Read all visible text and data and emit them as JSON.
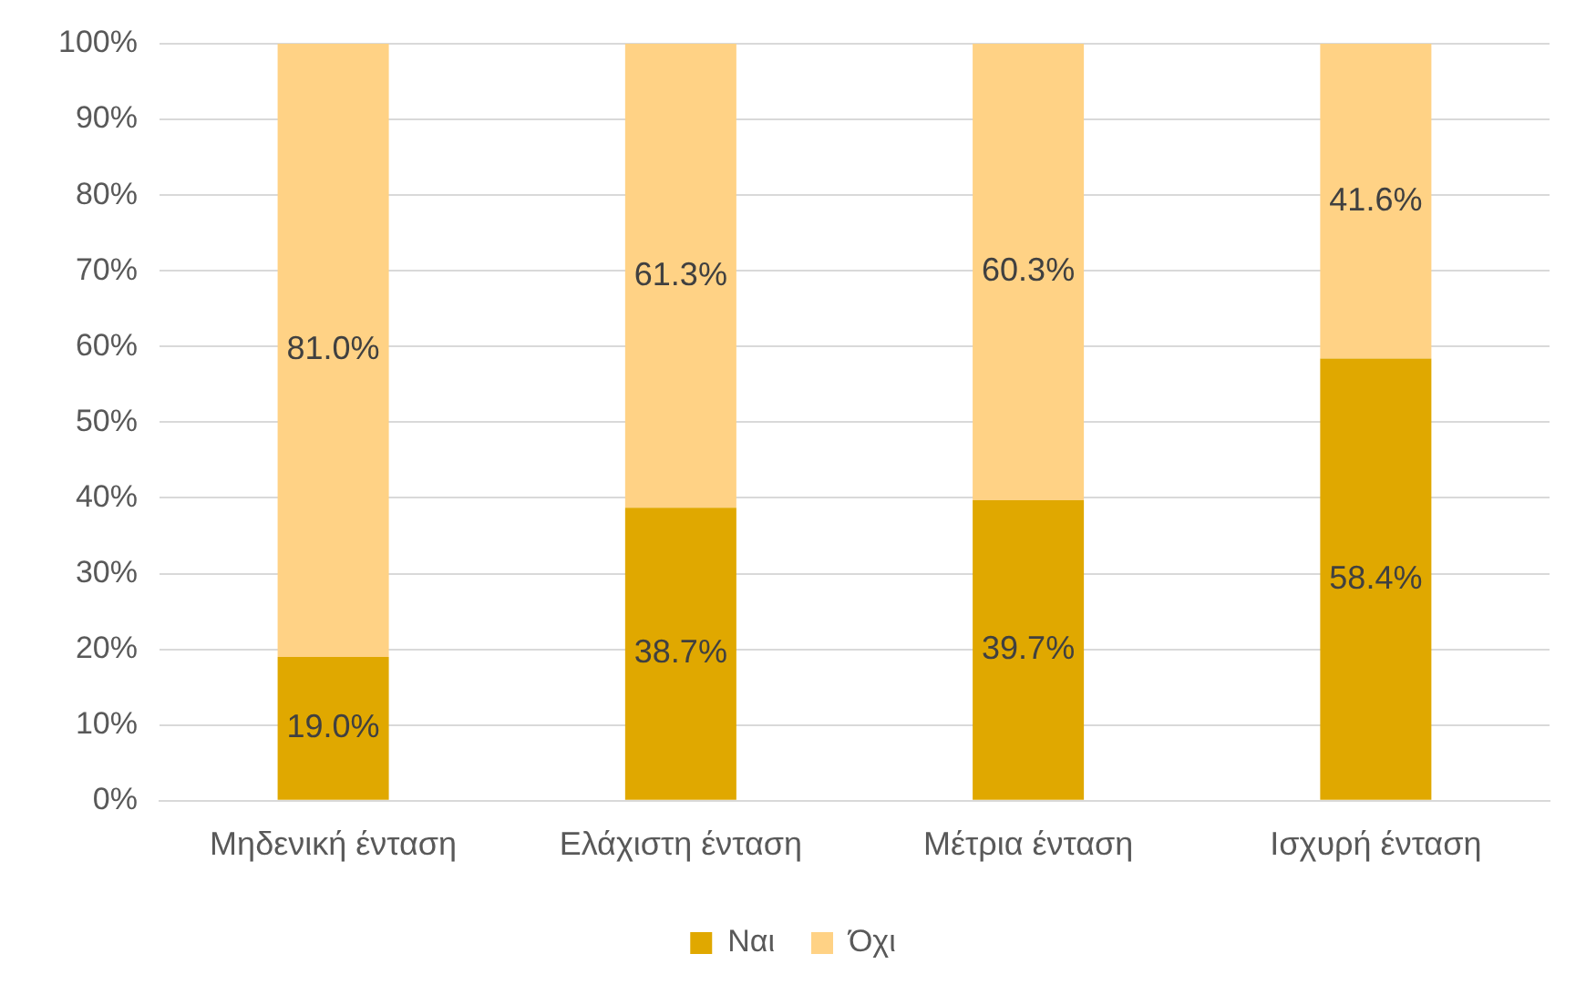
{
  "chart_data": {
    "type": "bar",
    "stacked": true,
    "categories": [
      "Μηδενική ένταση",
      "Ελάχιστη ένταση",
      "Μέτρια ένταση",
      "Ισχυρή ένταση"
    ],
    "series": [
      {
        "name": "Ναι",
        "color": "#e0a800",
        "values": [
          19.0,
          38.7,
          39.7,
          58.4
        ],
        "value_labels": [
          "19.0%",
          "38.7%",
          "39.7%",
          "58.4%"
        ]
      },
      {
        "name": "Όχι",
        "color": "#ffd285",
        "values": [
          81.0,
          61.3,
          60.3,
          41.6
        ],
        "value_labels": [
          "81.0%",
          "61.3%",
          "60.3%",
          "41.6%"
        ]
      }
    ],
    "ylim": [
      0,
      100
    ],
    "yticks": [
      {
        "value": 0,
        "label": "0%"
      },
      {
        "value": 10,
        "label": "10%"
      },
      {
        "value": 20,
        "label": "20%"
      },
      {
        "value": 30,
        "label": "30%"
      },
      {
        "value": 40,
        "label": "40%"
      },
      {
        "value": 50,
        "label": "50%"
      },
      {
        "value": 60,
        "label": "60%"
      },
      {
        "value": 70,
        "label": "70%"
      },
      {
        "value": 80,
        "label": "80%"
      },
      {
        "value": 90,
        "label": "90%"
      },
      {
        "value": 100,
        "label": "100%"
      }
    ],
    "grid": "y",
    "legend": "bottom"
  }
}
